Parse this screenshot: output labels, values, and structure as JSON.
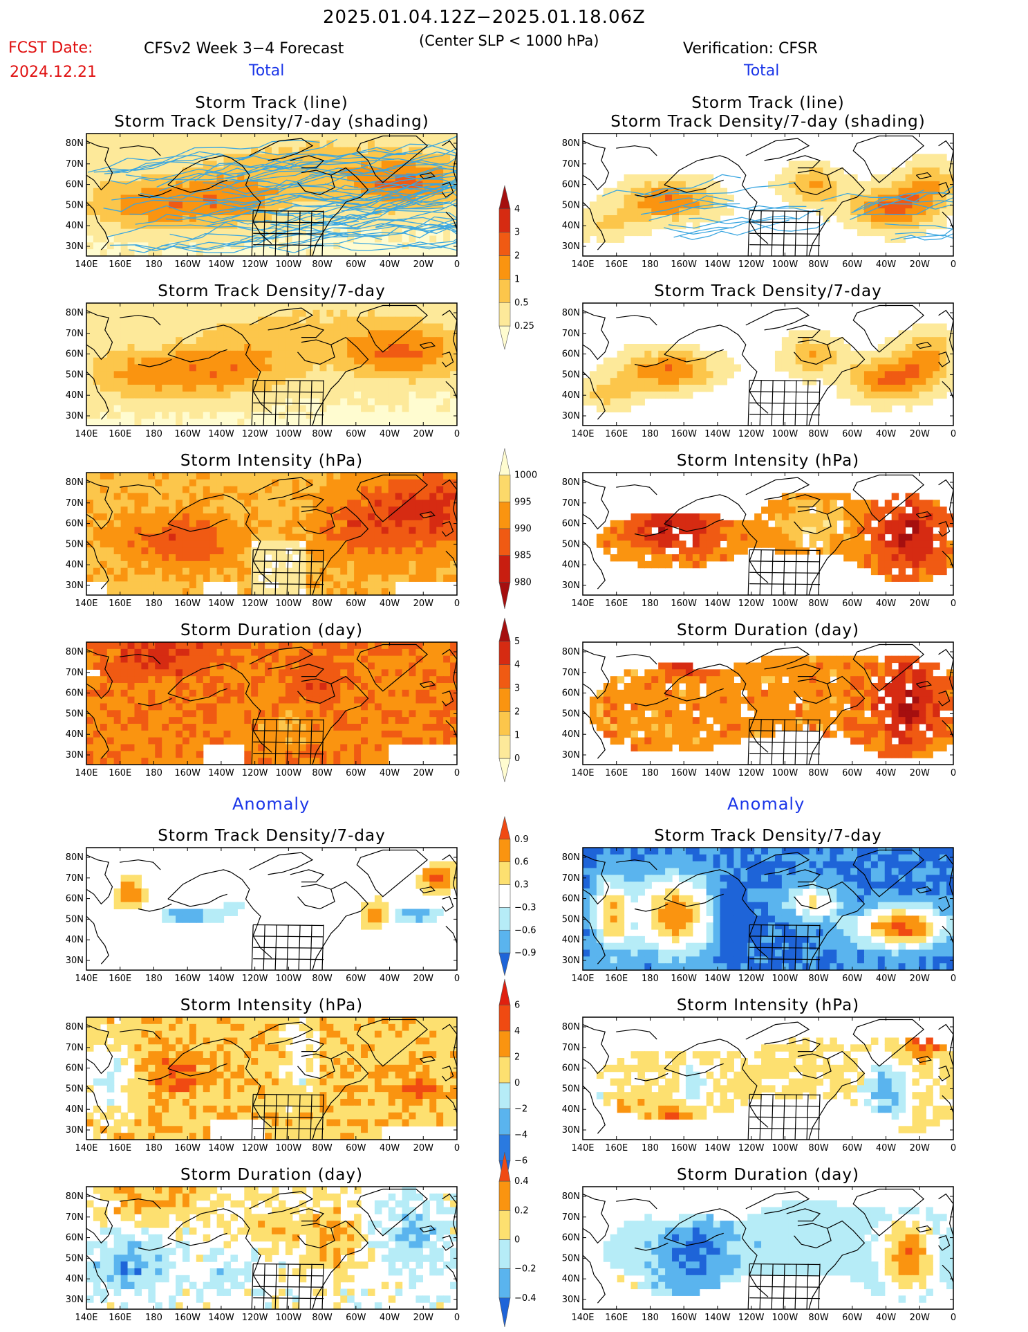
{
  "header": {
    "date_range": "2025.01.04.12Z−2025.01.18.06Z",
    "fcst_label": "FCST Date:",
    "fcst_date": "2024.12.21",
    "model": "CFSv2 Week 3−4 Forecast",
    "criterion": "(Center SLP < 1000 hPa)",
    "verification": "Verification: CFSR",
    "total_left": "Total",
    "total_right": "Total",
    "anomaly_left": "Anomaly",
    "anomaly_right": "Anomaly"
  },
  "axes": {
    "lon_ticks": [
      "140E",
      "160E",
      "180",
      "160W",
      "140W",
      "120W",
      "100W",
      "80W",
      "60W",
      "40W",
      "20W",
      "0"
    ],
    "lat_ticks": [
      "80N",
      "70N",
      "60N",
      "50N",
      "40N",
      "30N"
    ]
  },
  "panels": [
    {
      "id": "fcst-track",
      "col": 0,
      "row": 0,
      "title": [
        "Storm Track (line)",
        "Storm Track Density/7-day (shading)"
      ],
      "field": "density",
      "style": "forecast",
      "tracks": true
    },
    {
      "id": "cfsr-track",
      "col": 1,
      "row": 0,
      "title": [
        "Storm Track (line)",
        "Storm Track Density/7-day (shading)"
      ],
      "field": "density",
      "style": "cfsr",
      "tracks": true
    },
    {
      "id": "fcst-density",
      "col": 0,
      "row": 1,
      "title": [
        "Storm Track Density/7-day"
      ],
      "field": "density",
      "style": "forecast"
    },
    {
      "id": "cfsr-density",
      "col": 1,
      "row": 1,
      "title": [
        "Storm Track Density/7-day"
      ],
      "field": "density",
      "style": "cfsr"
    },
    {
      "id": "fcst-intensity",
      "col": 0,
      "row": 2,
      "title": [
        "Storm Intensity (hPa)"
      ],
      "field": "intensity",
      "style": "forecast"
    },
    {
      "id": "cfsr-intensity",
      "col": 1,
      "row": 2,
      "title": [
        "Storm Intensity (hPa)"
      ],
      "field": "intensity",
      "style": "cfsr"
    },
    {
      "id": "fcst-duration",
      "col": 0,
      "row": 3,
      "title": [
        "Storm Duration (day)"
      ],
      "field": "duration",
      "style": "forecast"
    },
    {
      "id": "cfsr-duration",
      "col": 1,
      "row": 3,
      "title": [
        "Storm Duration (day)"
      ],
      "field": "duration",
      "style": "cfsr"
    },
    {
      "id": "fcst-density-anom",
      "col": 0,
      "row": 4,
      "title": [
        "Storm Track Density/7-day"
      ],
      "field": "density_anom",
      "style": "forecast"
    },
    {
      "id": "cfsr-density-anom",
      "col": 1,
      "row": 4,
      "title": [
        "Storm Track Density/7-day"
      ],
      "field": "density_anom",
      "style": "cfsr"
    },
    {
      "id": "fcst-intensity-anom",
      "col": 0,
      "row": 5,
      "title": [
        "Storm Intensity (hPa)"
      ],
      "field": "intensity_anom",
      "style": "forecast"
    },
    {
      "id": "cfsr-intensity-anom",
      "col": 1,
      "row": 5,
      "title": [
        "Storm Intensity (hPa)"
      ],
      "field": "intensity_anom",
      "style": "cfsr"
    },
    {
      "id": "fcst-duration-anom",
      "col": 0,
      "row": 6,
      "title": [
        "Storm Duration (day)"
      ],
      "field": "duration_anom",
      "style": "forecast"
    },
    {
      "id": "cfsr-duration-anom",
      "col": 1,
      "row": 6,
      "title": [
        "Storm Duration (day)"
      ],
      "field": "duration_anom",
      "style": "cfsr"
    }
  ],
  "colorbars": [
    {
      "id": "density",
      "labels": [
        "4",
        "3",
        "2",
        "1",
        "0.5",
        "0.25"
      ],
      "colors": [
        "#a50f0f",
        "#d62b12",
        "#f05a13",
        "#fa9410",
        "#fcc64b",
        "#fde99a",
        "#fffcd0"
      ]
    },
    {
      "id": "intensity",
      "labels": [
        "1000",
        "995",
        "990",
        "985",
        "980"
      ],
      "colors": [
        "#fffcd0",
        "#fcd96a",
        "#fa9410",
        "#f05a13",
        "#c81e10",
        "#a50f0f"
      ]
    },
    {
      "id": "duration",
      "labels": [
        "5",
        "4",
        "3",
        "2",
        "1",
        "0"
      ],
      "colors": [
        "#a50f0f",
        "#d62b12",
        "#f05a13",
        "#fa9410",
        "#fcc64b",
        "#fde99a",
        "#fffcd0"
      ]
    },
    {
      "id": "density_anom",
      "labels": [
        "0.9",
        "0.6",
        "0.3",
        "−0.3",
        "−0.6",
        "−0.9"
      ],
      "colors": [
        "#f04a12",
        "#fa9410",
        "#fde070",
        "#ffffff",
        "#b6ecf7",
        "#5ab4ee",
        "#1e64d8"
      ]
    },
    {
      "id": "intensity_anom",
      "labels": [
        "6",
        "4",
        "2",
        "0",
        "−2",
        "−4",
        "−6"
      ],
      "colors": [
        "#e0200f",
        "#f04a12",
        "#fa9410",
        "#fde070",
        "#b6ecf7",
        "#5ab4ee",
        "#2a7ae0",
        "#1e64d8"
      ]
    },
    {
      "id": "duration_anom",
      "labels": [
        "0.4",
        "0.2",
        "0",
        "−0.2",
        "−0.4"
      ],
      "colors": [
        "#f04a12",
        "#fa9410",
        "#fde070",
        "#b6ecf7",
        "#5ab4ee",
        "#1e64d8"
      ]
    }
  ],
  "palette": {
    "frame": "#000000",
    "coast": "#000000",
    "track_line": "#3aa6e0",
    "label_red": "#e01010",
    "label_blue": "#1a35e8"
  }
}
